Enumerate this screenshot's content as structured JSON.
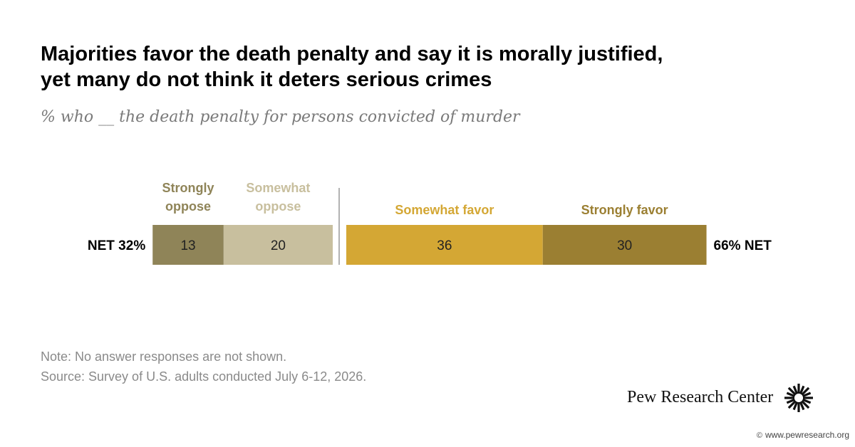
{
  "title_line1": "Majorities favor the death penalty and say it is morally justified,",
  "title_line2": "yet many do not think it deters serious crimes",
  "subtitle": "% who __ the death penalty for persons convicted of murder",
  "note": "Note: No answer responses are not shown.",
  "source": "Source: Survey of U.S. adults conducted July 6-12, 2026.",
  "brand": "Pew Research Center",
  "url": "www.pewresearch.org",
  "icons": {
    "brand_mark": "pew-sunburst-icon",
    "url": "copyright-icon"
  },
  "chart_data": {
    "type": "bar",
    "orientation": "horizontal-stacked-diverging",
    "title": "",
    "xlabel": "",
    "ylabel": "",
    "net_oppose_label": "NET 32%",
    "net_favor_label": "66% NET",
    "oppose": [
      {
        "key": "strongly_oppose",
        "name": "Strongly oppose",
        "lines": [
          "Strongly",
          "oppose"
        ],
        "value": 13,
        "color": "#8f8458",
        "label_color": "#8f8458"
      },
      {
        "key": "somewhat_oppose",
        "name": "Somewhat oppose",
        "lines": [
          "Somewhat",
          "oppose"
        ],
        "value": 20,
        "color": "#c8bf9e",
        "label_color": "#c8bf9e"
      }
    ],
    "favor": [
      {
        "key": "somewhat_favor",
        "name": "Somewhat favor",
        "lines": [
          "Somewhat favor"
        ],
        "value": 36,
        "color": "#d4a734",
        "label_color": "#d4a734"
      },
      {
        "key": "strongly_favor",
        "name": "Strongly favor",
        "lines": [
          "Strongly favor"
        ],
        "value": 30,
        "color": "#9b7f32",
        "label_color": "#9b7f32"
      }
    ],
    "divider_color": "#999999"
  }
}
